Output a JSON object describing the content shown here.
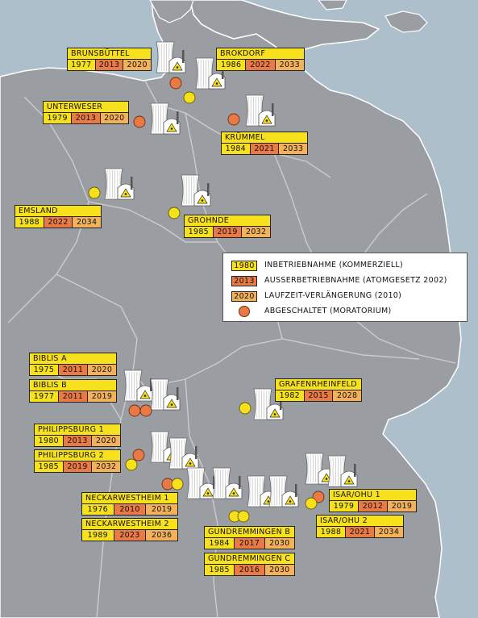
{
  "colors": {
    "sea": "#aebfcc",
    "land": "#9a9ea3",
    "border": "#ffffff",
    "yellow": "#f7e11c",
    "orange": "#e97a45",
    "orange_light": "#f3b15a"
  },
  "legend": {
    "rows": [
      {
        "value": "1980",
        "text": "INBETRIEBNAHME (KOMMERZIELL)",
        "style": "start"
      },
      {
        "value": "2013",
        "text": "AUSSERBETRIEBNAHME (ATOMGESETZ 2002)",
        "style": "shut"
      },
      {
        "value": "2020",
        "text": "LAUFZEIT-VERLÄNGERUNG (2010)",
        "style": "ext"
      },
      {
        "value": "",
        "text": "ABGESCHALTET (MORATORIUM)",
        "style": "dot"
      }
    ]
  },
  "plants": [
    {
      "name": "BRUNSBÜTTEL",
      "start": "1977",
      "shutdown": "2013",
      "extension": "2020",
      "status": "moratorium"
    },
    {
      "name": "BROKDORF",
      "start": "1986",
      "shutdown": "2022",
      "extension": "2033",
      "status": "active"
    },
    {
      "name": "UNTERWESER",
      "start": "1979",
      "shutdown": "2013",
      "extension": "2020",
      "status": "moratorium"
    },
    {
      "name": "KRÜMMEL",
      "start": "1984",
      "shutdown": "2021",
      "extension": "2033",
      "status": "moratorium"
    },
    {
      "name": "EMSLAND",
      "start": "1988",
      "shutdown": "2022",
      "extension": "2034",
      "status": "active"
    },
    {
      "name": "GROHNDE",
      "start": "1985",
      "shutdown": "2019",
      "extension": "2032",
      "status": "active"
    },
    {
      "name": "BIBLIS A",
      "start": "1975",
      "shutdown": "2011",
      "extension": "2020",
      "status": "moratorium"
    },
    {
      "name": "BIBLIS B",
      "start": "1977",
      "shutdown": "2011",
      "extension": "2019",
      "status": "moratorium"
    },
    {
      "name": "GRAFENRHEINFELD",
      "start": "1982",
      "shutdown": "2015",
      "extension": "2028",
      "status": "active"
    },
    {
      "name": "PHILIPPSBURG 1",
      "start": "1980",
      "shutdown": "2013",
      "extension": "2020",
      "status": "moratorium"
    },
    {
      "name": "PHILIPPSBURG 2",
      "start": "1985",
      "shutdown": "2019",
      "extension": "2032",
      "status": "active"
    },
    {
      "name": "NECKARWESTHEIM 1",
      "start": "1976",
      "shutdown": "2010",
      "extension": "2019",
      "status": "moratorium"
    },
    {
      "name": "NECKARWESTHEIM 2",
      "start": "1989",
      "shutdown": "2023",
      "extension": "2036",
      "status": "active"
    },
    {
      "name": "ISAR/OHU 1",
      "start": "1979",
      "shutdown": "2012",
      "extension": "2019",
      "status": "moratorium"
    },
    {
      "name": "ISAR/OHU 2",
      "start": "1988",
      "shutdown": "2021",
      "extension": "2034",
      "status": "active"
    },
    {
      "name": "GUNDREMMINGEN B",
      "start": "1984",
      "shutdown": "2017",
      "extension": "2030",
      "status": "active"
    },
    {
      "name": "GUNDREMMINGEN C",
      "start": "1985",
      "shutdown": "2016",
      "extension": "2030",
      "status": "active"
    }
  ]
}
